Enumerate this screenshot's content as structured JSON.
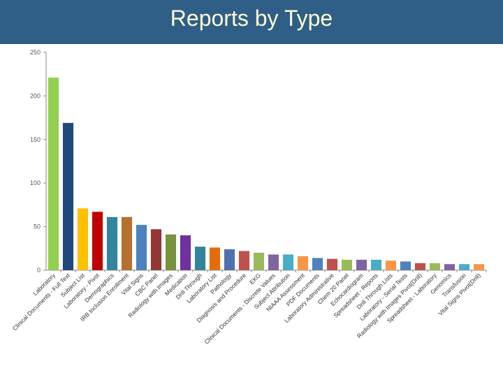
{
  "header": {
    "title": "Reports by Type"
  },
  "chart_data": {
    "type": "bar",
    "title": "",
    "xlabel": "",
    "ylabel": "",
    "ylim": [
      0,
      250
    ],
    "yticks": [
      0,
      50,
      100,
      150,
      200,
      250
    ],
    "grid": false,
    "legend": "none",
    "categories": [
      "Laboratory",
      "Clinical Documents - Full Text",
      "Subject List",
      "Laboratory - Pivot",
      "Demographics",
      "IRB Inclusion Enrollment",
      "Vital Signs",
      "CBC Panel",
      "Radiology with Images",
      "Medication",
      "Drill Through",
      "Laboratory List",
      "Pathology",
      "Diagnosis and Procedure",
      "EKG",
      "Clinical Documents - Discrete Values",
      "Subject Attribution",
      "NIAAA Assessment",
      "PDF Documents",
      "Laboratory Administrative",
      "Chem 20 Panel",
      "Echocardiogram",
      "Spreadsheet - Reports",
      "Drill Through Lists",
      "Laboratory - Serial Tests",
      "Radiology with Images Pivot(Drill)",
      "Spreadsheet - Laboratory",
      "Genomics",
      "Transfusion",
      "Vital Signs Pivot(Drill)"
    ],
    "values": [
      221,
      169,
      71,
      67,
      61,
      61,
      52,
      47,
      41,
      40,
      27,
      26,
      24,
      22,
      20,
      18,
      18,
      16,
      14,
      13,
      12,
      12,
      12,
      11,
      10,
      8,
      8,
      7,
      7,
      7
    ],
    "colors": [
      "#92d050",
      "#1f497d",
      "#ffc000",
      "#c00000",
      "#31859c",
      "#b7712f",
      "#4f81bd",
      "#943634",
      "#77933c",
      "#7030a0",
      "#31849b",
      "#e46c0a",
      "#4f6fb0",
      "#c0504d",
      "#9bbb59",
      "#8064a2",
      "#4bacc6",
      "#f79646",
      "#4f81bd",
      "#c0504d",
      "#9bbb59",
      "#8064a2",
      "#4bacc6",
      "#f79646",
      "#4f81bd",
      "#c0504d",
      "#9bbb59",
      "#8064a2",
      "#4bacc6",
      "#f79646"
    ]
  }
}
